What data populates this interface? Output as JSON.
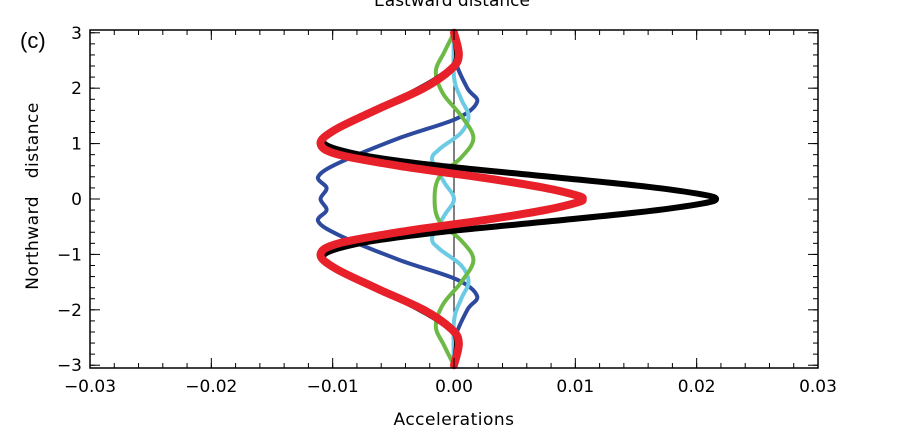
{
  "panel_label": "(c)",
  "top_title_fragment": "Eastward distance",
  "chart_data": {
    "type": "line",
    "xlabel": "Accelerations",
    "ylabel": "Northward   distance",
    "xlim": [
      -0.03,
      0.03
    ],
    "ylim": [
      -3.05,
      3.05
    ],
    "x_ticks": [
      "-0.03",
      "-0.02",
      "-0.01",
      "0.00",
      "0.01",
      "0.02",
      "0.03"
    ],
    "y_ticks": [
      "3",
      "2",
      "1",
      "0",
      "-1",
      "-2",
      "-3"
    ],
    "zero_line": true,
    "grid": false,
    "series": [
      {
        "color": "#2e4a9e",
        "points": [
          [
            0.0,
            -3.0
          ],
          [
            0.0001,
            -2.5
          ],
          [
            0.0011,
            -2.0
          ],
          [
            0.0019,
            -1.75
          ],
          [
            0.0002,
            -1.45
          ],
          [
            -0.0045,
            -1.1
          ],
          [
            -0.0095,
            -0.65
          ],
          [
            -0.0112,
            -0.4
          ],
          [
            -0.0105,
            -0.2
          ],
          [
            -0.011,
            0.0
          ],
          [
            -0.0105,
            0.2
          ],
          [
            -0.0112,
            0.4
          ],
          [
            -0.0095,
            0.65
          ],
          [
            -0.0045,
            1.1
          ],
          [
            0.0002,
            1.45
          ],
          [
            0.0019,
            1.75
          ],
          [
            0.0011,
            2.0
          ],
          [
            0.0001,
            2.5
          ],
          [
            0.0,
            3.0
          ]
        ]
      },
      {
        "color": "#6ccbe4",
        "points": [
          [
            0.0,
            -3.0
          ],
          [
            0.0,
            -2.2
          ],
          [
            0.0006,
            -1.8
          ],
          [
            0.0012,
            -1.5
          ],
          [
            0.0006,
            -1.2
          ],
          [
            -0.0012,
            -0.9
          ],
          [
            -0.0018,
            -0.7
          ],
          [
            -0.0008,
            -0.3
          ],
          [
            0.0,
            0.0
          ],
          [
            -0.0008,
            0.3
          ],
          [
            -0.0018,
            0.7
          ],
          [
            -0.0012,
            0.9
          ],
          [
            0.0006,
            1.2
          ],
          [
            0.0012,
            1.5
          ],
          [
            0.0006,
            1.8
          ],
          [
            0.0,
            2.2
          ],
          [
            0.0,
            3.0
          ]
        ]
      },
      {
        "color": "#6cba45",
        "points": [
          [
            0.0,
            -3.0
          ],
          [
            -0.0008,
            -2.65
          ],
          [
            -0.0015,
            -2.3
          ],
          [
            -0.0009,
            -1.9
          ],
          [
            0.0006,
            -1.5
          ],
          [
            0.0016,
            -1.1
          ],
          [
            0.0006,
            -0.75
          ],
          [
            -0.0012,
            -0.4
          ],
          [
            -0.0016,
            0.0
          ],
          [
            -0.0012,
            0.4
          ],
          [
            0.0006,
            0.75
          ],
          [
            0.0016,
            1.1
          ],
          [
            0.0006,
            1.5
          ],
          [
            -0.0009,
            1.9
          ],
          [
            -0.0015,
            2.3
          ],
          [
            -0.0008,
            2.65
          ],
          [
            0.0,
            3.0
          ]
        ]
      },
      {
        "color": "#000000",
        "points": [
          [
            0.0,
            -3.0
          ],
          [
            0.0002,
            -2.5
          ],
          [
            -0.0012,
            -2.2
          ],
          [
            -0.0045,
            -1.8
          ],
          [
            -0.0085,
            -1.4
          ],
          [
            -0.0108,
            -1.05
          ],
          [
            -0.0082,
            -0.82
          ],
          [
            -0.002,
            -0.62
          ],
          [
            0.008,
            -0.4
          ],
          [
            0.016,
            -0.22
          ],
          [
            0.0205,
            -0.08
          ],
          [
            0.0216,
            0.0
          ],
          [
            0.0205,
            0.08
          ],
          [
            0.016,
            0.22
          ],
          [
            0.008,
            0.4
          ],
          [
            -0.002,
            0.62
          ],
          [
            -0.0082,
            0.82
          ],
          [
            -0.0108,
            1.05
          ],
          [
            -0.0085,
            1.4
          ],
          [
            -0.0045,
            1.8
          ],
          [
            -0.0012,
            2.2
          ],
          [
            0.0002,
            2.5
          ],
          [
            0.0,
            3.0
          ]
        ]
      },
      {
        "color": "#e8202a",
        "points": [
          [
            0.0,
            -3.0
          ],
          [
            0.0004,
            -2.6
          ],
          [
            -0.0002,
            -2.35
          ],
          [
            -0.0025,
            -2.0
          ],
          [
            -0.0065,
            -1.6
          ],
          [
            -0.0098,
            -1.25
          ],
          [
            -0.011,
            -1.0
          ],
          [
            -0.0095,
            -0.8
          ],
          [
            -0.004,
            -0.58
          ],
          [
            0.0025,
            -0.38
          ],
          [
            0.0075,
            -0.2
          ],
          [
            0.0102,
            -0.06
          ],
          [
            0.0106,
            0.0
          ],
          [
            0.0102,
            0.06
          ],
          [
            0.0075,
            0.2
          ],
          [
            0.0025,
            0.38
          ],
          [
            -0.004,
            0.58
          ],
          [
            -0.0095,
            0.8
          ],
          [
            -0.011,
            1.0
          ],
          [
            -0.0098,
            1.25
          ],
          [
            -0.0065,
            1.6
          ],
          [
            -0.0025,
            2.0
          ],
          [
            -0.0002,
            2.35
          ],
          [
            0.0004,
            2.6
          ],
          [
            0.0,
            3.0
          ]
        ]
      }
    ]
  }
}
